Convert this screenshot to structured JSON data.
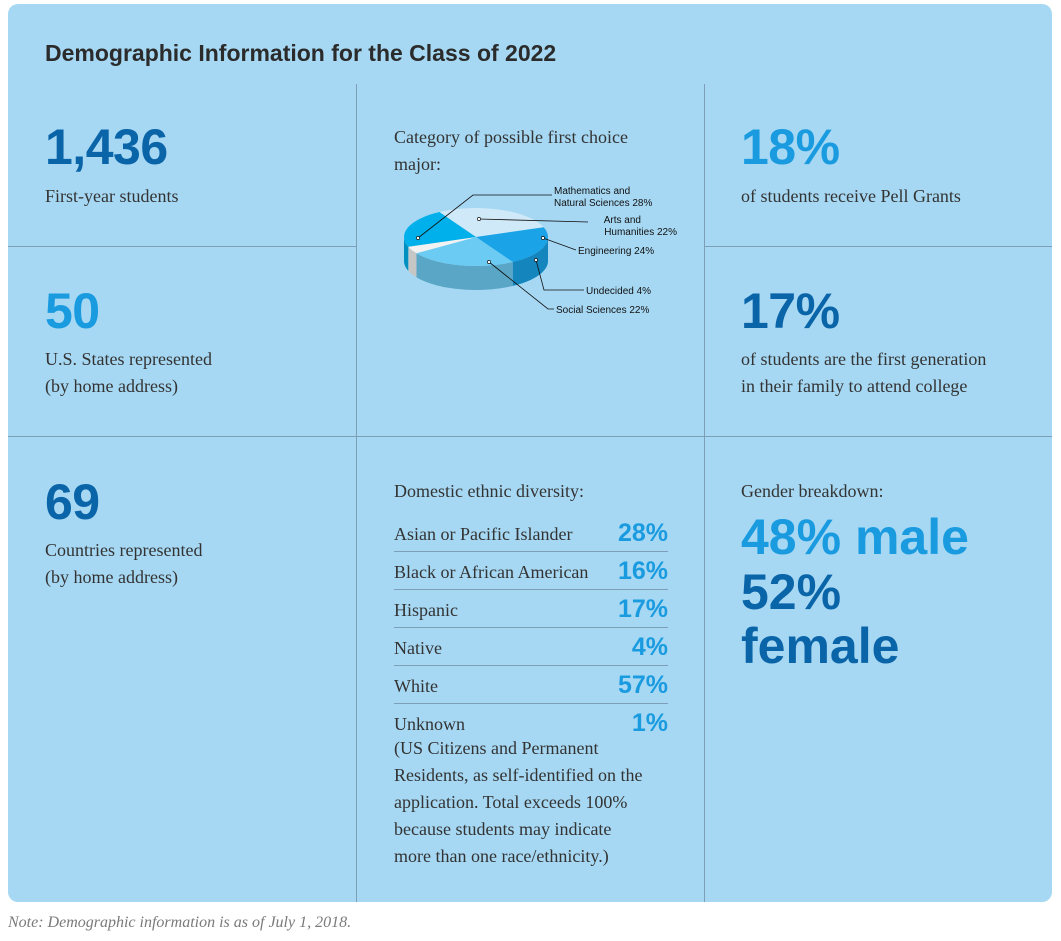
{
  "title": "Demographic Information for the Class of 2022",
  "colors": {
    "panel": "#a6d8f3",
    "dark_blue": "#0a64a8",
    "light_blue": "#1a9be0",
    "divider": "#7e9fb8"
  },
  "stats": {
    "first_year": {
      "value": "1,436",
      "label": "First-year students"
    },
    "states": {
      "value": "50",
      "label_line1": "U.S. States represented",
      "label_line2": "(by home address)"
    },
    "countries": {
      "value": "69",
      "label_line1": "Countries represented",
      "label_line2": "(by home address)"
    },
    "pell": {
      "value": "18%",
      "label": "of students receive Pell Grants"
    },
    "first_gen": {
      "value": "17%",
      "label_line1": "of students are the first generation",
      "label_line2": "in their family to attend college"
    }
  },
  "pie": {
    "caption_line1": "Category of possible first choice",
    "caption_line2": "major:",
    "labels": {
      "math_line1": "Mathematics and",
      "math_line2": "Natural Sciences 28%",
      "arts_line1": "Arts and",
      "arts_line2": "Humanities 22%",
      "engineering": "Engineering 24%",
      "undecided": "Undecided 4%",
      "social": "Social Sciences 22%"
    }
  },
  "chart_data": {
    "type": "pie",
    "title": "Category of possible first choice major:",
    "categories": [
      "Mathematics and Natural Sciences",
      "Arts and Humanities",
      "Engineering",
      "Undecided",
      "Social Sciences"
    ],
    "values": [
      28,
      22,
      24,
      4,
      22
    ],
    "colors": [
      "#cfe9f8",
      "#1aa3e6",
      "#6ccbf2",
      "#f2f2f2",
      "#00b0ea"
    ]
  },
  "ethnic": {
    "title": "Domestic ethnic diversity:",
    "rows": [
      {
        "label": "Asian or Pacific Islander",
        "value": "28%"
      },
      {
        "label": "Black or African American",
        "value": "16%"
      },
      {
        "label": "Hispanic",
        "value": "17%"
      },
      {
        "label": "Native",
        "value": "4%"
      },
      {
        "label": "White",
        "value": "57%"
      },
      {
        "label": "Unknown",
        "value": "1%"
      }
    ],
    "note_lines": [
      "(US Citizens and Permanent",
      "Residents, as self-identified on the",
      "application. Total exceeds 100%",
      "because students may indicate",
      "more than one race/ethnicity.)"
    ]
  },
  "gender": {
    "title": "Gender breakdown:",
    "male": "48% male",
    "female_pct": "52%",
    "female_word": "female"
  },
  "footnote": "Note: Demographic information is as of July 1, 2018."
}
